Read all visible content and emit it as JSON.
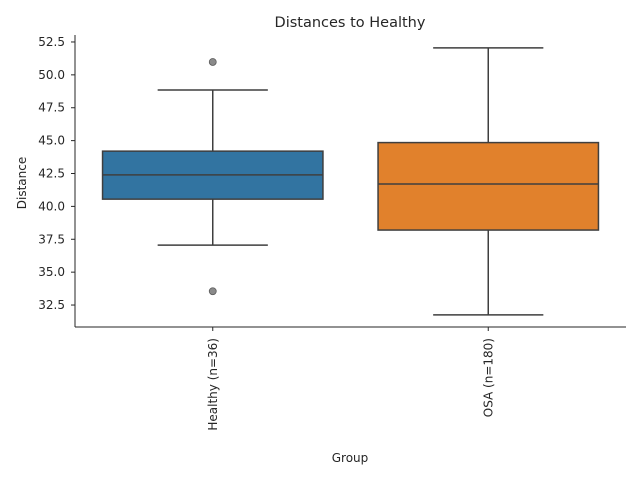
{
  "chart_data": {
    "type": "box",
    "title": "Distances to Healthy",
    "xlabel": "Group",
    "ylabel": "Distance",
    "ylim": [
      30.83,
      53.03
    ],
    "yticks": [
      "32.5",
      "35.0",
      "37.5",
      "40.0",
      "42.5",
      "45.0",
      "47.5",
      "50.0",
      "52.5"
    ],
    "ytick_values": [
      32.5,
      35.0,
      37.5,
      40.0,
      42.5,
      45.0,
      47.5,
      50.0,
      52.5
    ],
    "grid": false,
    "categories": [
      "Healthy (n=36)",
      "OSA (n=180)"
    ],
    "series": [
      {
        "name": "Healthy (n=36)",
        "color": "#3274a1",
        "whisker_low": 37.05,
        "q1": 40.55,
        "median": 42.4,
        "q3": 44.2,
        "whisker_high": 48.85,
        "outliers": [
          50.98,
          33.55
        ]
      },
      {
        "name": "OSA (n=180)",
        "color": "#e1812c",
        "whisker_low": 31.75,
        "q1": 38.2,
        "median": 41.7,
        "q3": 44.85,
        "whisker_high": 52.05,
        "outliers": []
      }
    ]
  }
}
